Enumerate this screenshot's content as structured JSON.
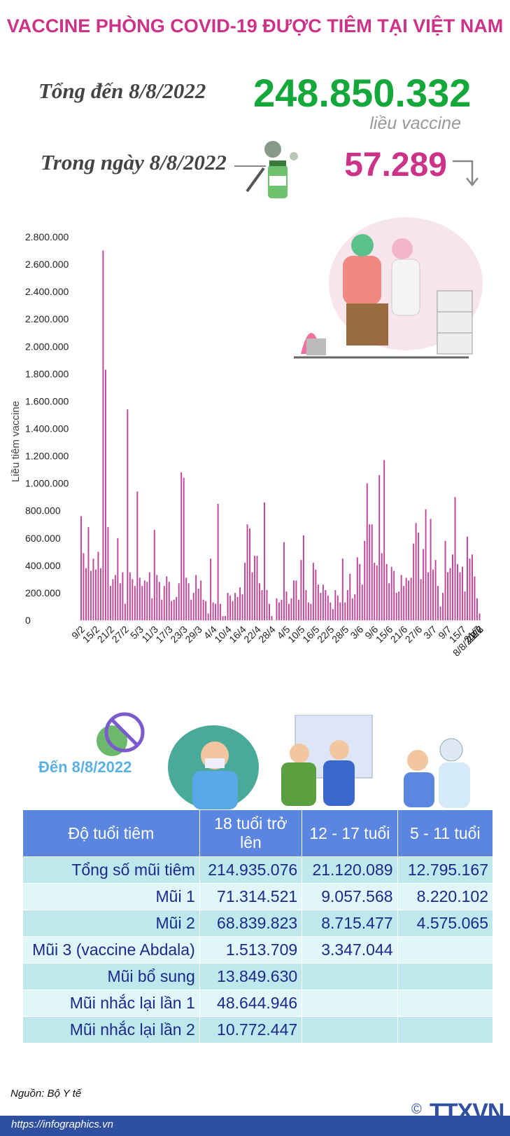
{
  "header": {
    "title": "VACCINE PHÒNG COVID-19 ĐƯỢC TIÊM TẠI VIỆT NAM",
    "total_label": "Tổng đến 8/8/2022",
    "total_value": "248.850.332",
    "total_unit": "liều vaccine",
    "day_label": "Trong ngày 8/8/2022",
    "day_value": "57.289"
  },
  "chart_data": {
    "type": "bar",
    "ylabel": "Liều tiêm vaccine",
    "ylim": [
      0,
      2800000
    ],
    "yticks": [
      "0",
      "200.000",
      "400.000",
      "600.000",
      "800.000",
      "1.000.000",
      "1.200.000",
      "1.400.000",
      "1.600.000",
      "1.800.000",
      "2.000.000",
      "2.200.000",
      "2.400.000",
      "2.600.000",
      "2.800.000"
    ],
    "xticks": [
      "9/2",
      "15/2",
      "21/2",
      "27/2",
      "5/3",
      "11/3",
      "17/3",
      "23/3",
      "29/3",
      "4/4",
      "10/4",
      "16/4",
      "22/4",
      "28/4",
      "4/5",
      "10/5",
      "16/5",
      "22/5",
      "28/5",
      "3/6",
      "9/6",
      "15/6",
      "21/6",
      "27/6",
      "3/7",
      "9/7",
      "15/7",
      "21/7",
      "27/7",
      "2/8",
      "8/8/2022"
    ],
    "bar_color": "#c2449a",
    "values": [
      760000,
      490000,
      380000,
      680000,
      360000,
      450000,
      370000,
      500000,
      380000,
      2700000,
      1830000,
      680000,
      250000,
      300000,
      330000,
      600000,
      270000,
      350000,
      120000,
      1540000,
      350000,
      300000,
      250000,
      940000,
      310000,
      250000,
      290000,
      280000,
      350000,
      160000,
      660000,
      330000,
      280000,
      150000,
      250000,
      320000,
      280000,
      140000,
      150000,
      170000,
      270000,
      1080000,
      1040000,
      310000,
      270000,
      150000,
      200000,
      330000,
      230000,
      290000,
      150000,
      140000,
      50000,
      450000,
      130000,
      120000,
      850000,
      120000,
      30000,
      30000,
      200000,
      180000,
      140000,
      200000,
      170000,
      240000,
      190000,
      420000,
      700000,
      670000,
      350000,
      470000,
      470000,
      270000,
      220000,
      860000,
      220000,
      120000,
      30000,
      0,
      160000,
      130000,
      150000,
      570000,
      210000,
      120000,
      160000,
      290000,
      290000,
      150000,
      440000,
      620000,
      220000,
      130000,
      120000,
      420000,
      370000,
      260000,
      200000,
      260000,
      220000,
      180000,
      130000,
      80000,
      220000,
      180000,
      130000,
      450000,
      130000,
      220000,
      340000,
      160000,
      190000,
      460000,
      410000,
      260000,
      580000,
      1000000,
      700000,
      700000,
      420000,
      400000,
      1060000,
      490000,
      1170000,
      410000,
      270000,
      390000,
      360000,
      200000,
      210000,
      330000,
      250000,
      310000,
      290000,
      310000,
      560000,
      710000,
      640000,
      300000,
      520000,
      810000,
      350000,
      740000,
      370000,
      440000,
      250000,
      100000,
      200000,
      580000,
      350000,
      380000,
      480000,
      900000,
      410000,
      350000,
      390000,
      210000,
      610000,
      450000,
      480000,
      320000,
      160000,
      50000
    ]
  },
  "age_table": {
    "as_of": "Đến 8/8/2022",
    "headers": [
      "Độ tuổi tiêm",
      "18 tuổi trở lên",
      "12 - 17 tuổi",
      "5 - 11 tuổi"
    ],
    "rows": [
      {
        "label": "Tổng số mũi tiêm",
        "a": "214.935.076",
        "b": "21.120.089",
        "c": "12.795.167"
      },
      {
        "label": "Mũi 1",
        "a": "71.314.521",
        "b": "9.057.568",
        "c": "8.220.102"
      },
      {
        "label": "Mũi 2",
        "a": "68.839.823",
        "b": "8.715.477",
        "c": "4.575.065"
      },
      {
        "label": "Mũi 3 (vaccine Abdala)",
        "a": "1.513.709",
        "b": "3.347.044",
        "c": ""
      },
      {
        "label": "Mũi bổ sung",
        "a": "13.849.630",
        "b": "",
        "c": ""
      },
      {
        "label": "Mũi nhắc lại lần 1",
        "a": "48.644.946",
        "b": "",
        "c": ""
      },
      {
        "label": "Mũi nhắc lại lần 2",
        "a": "10.772.447",
        "b": "",
        "c": ""
      }
    ]
  },
  "footer": {
    "source": "Nguồn: Bộ Y tế",
    "url": "https://infographics.vn",
    "logo": "TTXVN",
    "copyright": "©"
  }
}
